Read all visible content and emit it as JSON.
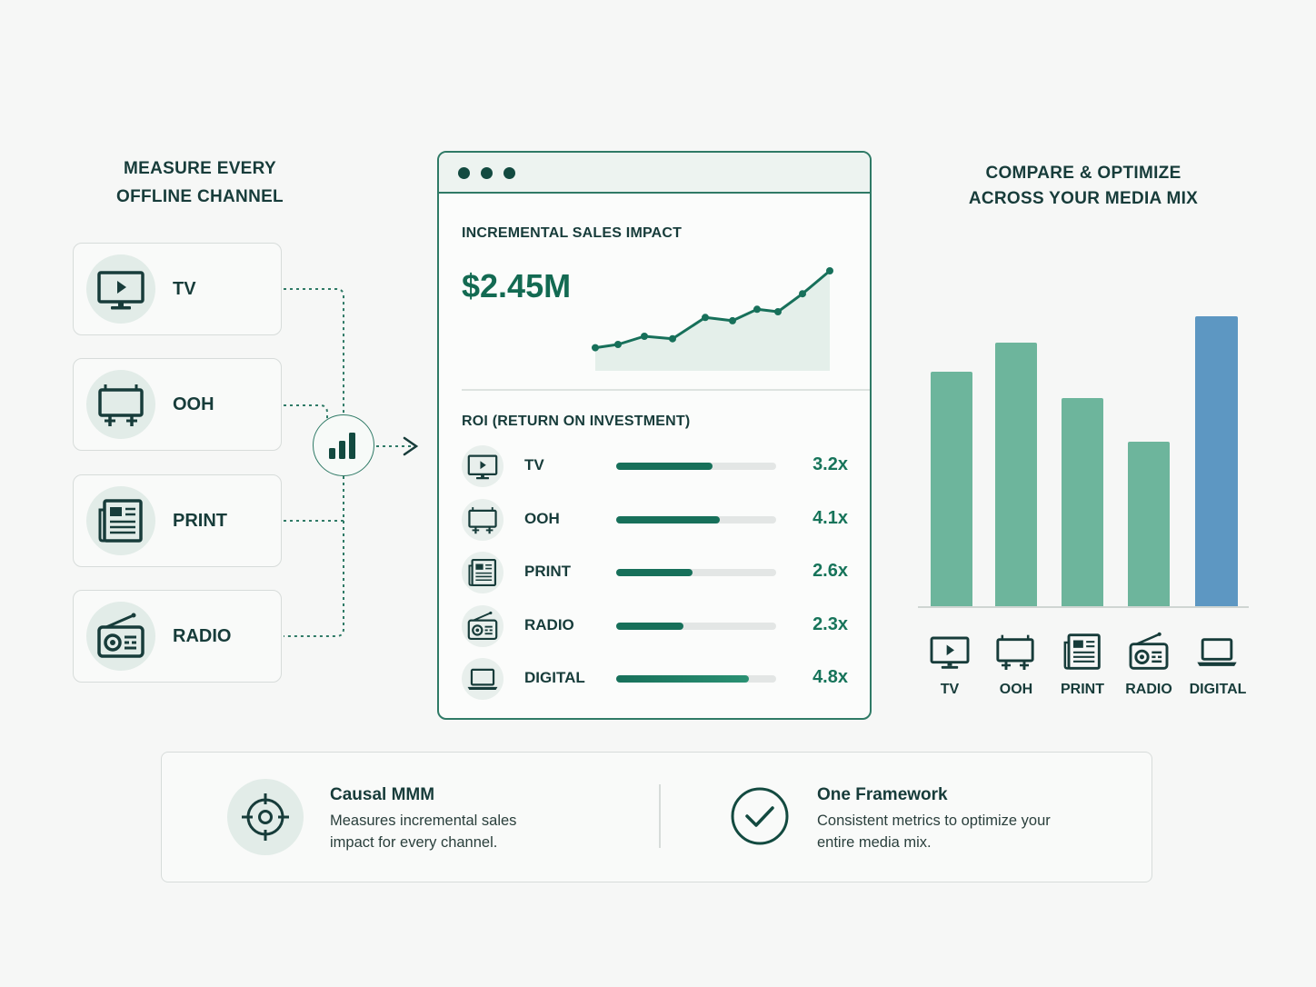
{
  "left_heading": {
    "line1": "MEASURE EVERY",
    "line2": "OFFLINE CHANNEL"
  },
  "channels": [
    {
      "label": "TV",
      "icon": "tv-icon"
    },
    {
      "label": "OOH",
      "icon": "billboard-icon"
    },
    {
      "label": "PRINT",
      "icon": "newspaper-icon"
    },
    {
      "label": "RADIO",
      "icon": "radio-icon"
    }
  ],
  "hub_icon": "bar-chart-icon",
  "dashboard": {
    "sales_title": "INCREMENTAL SALES IMPACT",
    "sales_value": "$2.45M",
    "roi_title": "ROI (RETURN ON INVESTMENT)",
    "roi_rows": [
      {
        "label": "TV",
        "value": "3.2x",
        "level": 0.6,
        "icon": "tv-icon"
      },
      {
        "label": "OOH",
        "value": "4.1x",
        "level": 0.65,
        "icon": "billboard-icon"
      },
      {
        "label": "PRINT",
        "value": "2.6x",
        "level": 0.48,
        "icon": "newspaper-icon"
      },
      {
        "label": "RADIO",
        "value": "2.3x",
        "level": 0.42,
        "icon": "radio-icon"
      },
      {
        "label": "DIGITAL",
        "value": "4.8x",
        "level": 0.83,
        "icon": "laptop-icon"
      }
    ]
  },
  "right_heading": {
    "line1": "COMPARE & OPTIMIZE",
    "line2": "ACROSS YOUR MEDIA MIX"
  },
  "chart_data": {
    "type": "bar",
    "categories": [
      "TV",
      "OOH",
      "PRINT",
      "RADIO",
      "DIGITAL"
    ],
    "values": [
      0.81,
      0.91,
      0.72,
      0.57,
      1.0
    ],
    "colors": [
      "#6db59c",
      "#6db59c",
      "#6db59c",
      "#6db59c",
      "#5d97c2"
    ],
    "title": "",
    "xlabel": "",
    "ylabel": ""
  },
  "sparkline_data": {
    "type": "area",
    "values": [
      0.06,
      0.1,
      0.2,
      0.17,
      0.43,
      0.39,
      0.53,
      0.5,
      0.72,
      1.0
    ]
  },
  "features": [
    {
      "title": "Causal MMM",
      "desc": "Measures incremental sales impact for every channel.",
      "icon": "target-icon"
    },
    {
      "title": "One Framework",
      "desc": "Consistent metrics to optimize your entire media mix.",
      "icon": "checkmark-icon"
    }
  ],
  "colors": {
    "accent": "#17705a",
    "dark": "#134a40",
    "digital": "#5d97c2",
    "bar": "#6db59c"
  }
}
